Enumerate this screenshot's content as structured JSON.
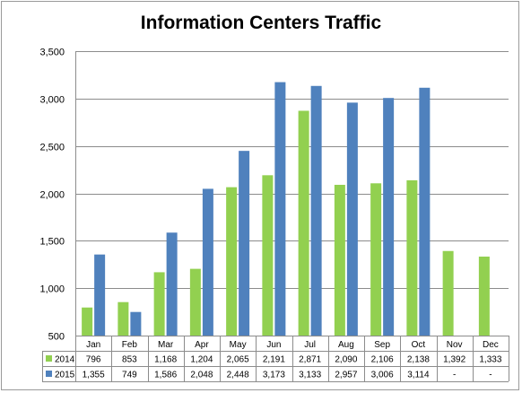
{
  "chart_data": {
    "type": "bar",
    "title": "Information Centers Traffic",
    "xlabel": "",
    "ylabel": "",
    "ylim": [
      500,
      3500
    ],
    "yticks": [
      500,
      1000,
      1500,
      2000,
      2500,
      3000,
      3500
    ],
    "ytick_labels": [
      "500",
      "1,000",
      "1,500",
      "2,000",
      "2,500",
      "3,000",
      "3,500"
    ],
    "grid": true,
    "legend": "data-table",
    "categories": [
      "Jan",
      "Feb",
      "Mar",
      "Apr",
      "May",
      "Jun",
      "Jul",
      "Aug",
      "Sep",
      "Oct",
      "Nov",
      "Dec"
    ],
    "series": [
      {
        "name": "2014",
        "color": "#92d050",
        "values": [
          796,
          853,
          1168,
          1204,
          2065,
          2191,
          2871,
          2090,
          2106,
          2138,
          1392,
          1333
        ],
        "labels": [
          "796",
          "853",
          "1,168",
          "1,204",
          "2,065",
          "2,191",
          "2,871",
          "2,090",
          "2,106",
          "2,138",
          "1,392",
          "1,333"
        ]
      },
      {
        "name": "2015",
        "color": "#4f81bd",
        "values": [
          1355,
          749,
          1586,
          2048,
          2448,
          3173,
          3133,
          2957,
          3006,
          3114,
          null,
          null
        ],
        "labels": [
          "1,355",
          "749",
          "1,586",
          "2,048",
          "2,448",
          "3,173",
          "3,133",
          "2,957",
          "3,006",
          "3,114",
          "-",
          "-"
        ]
      }
    ]
  }
}
